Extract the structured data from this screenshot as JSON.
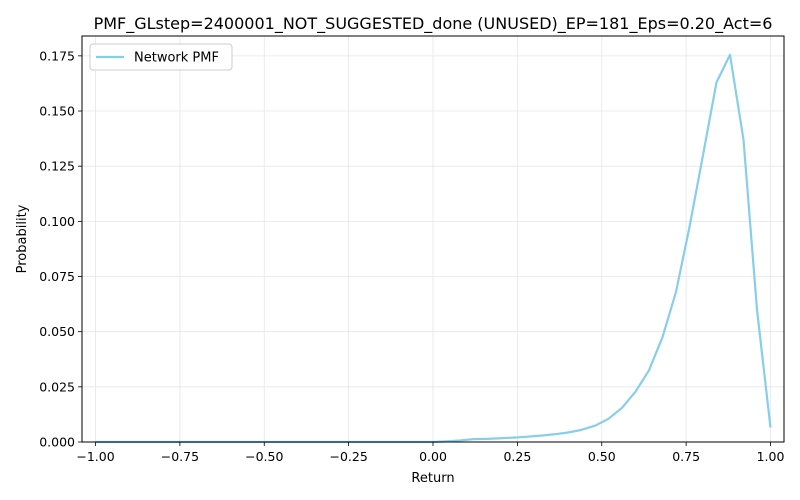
{
  "chart_data": {
    "type": "line",
    "title": "PMF_GLstep=2400001_NOT_SUGGESTED_done (UNUSED)_EP=181_Eps=0.20_Act=6",
    "xlabel": "Return",
    "ylabel": "Probability",
    "xlim": [
      -1.04,
      1.04
    ],
    "ylim": [
      0.0,
      0.184
    ],
    "xticks": [
      -1.0,
      -0.75,
      -0.5,
      -0.25,
      0.0,
      0.25,
      0.5,
      0.75,
      1.0
    ],
    "xtick_labels": [
      "−1.00",
      "−0.75",
      "−0.50",
      "−0.25",
      "0.00",
      "0.25",
      "0.50",
      "0.75",
      "1.00"
    ],
    "yticks": [
      0.0,
      0.025,
      0.05,
      0.075,
      0.1,
      0.125,
      0.15,
      0.175
    ],
    "ytick_labels": [
      "0.000",
      "0.025",
      "0.050",
      "0.075",
      "0.100",
      "0.125",
      "0.150",
      "0.175"
    ],
    "grid": true,
    "legend_position": "top-left",
    "series": [
      {
        "name": "Network PMF",
        "color": "#87ceeb",
        "x": [
          -1.0,
          -0.96,
          -0.92,
          -0.88,
          -0.84,
          -0.8,
          -0.76,
          -0.72,
          -0.68,
          -0.64,
          -0.6,
          -0.56,
          -0.52,
          -0.48,
          -0.44,
          -0.4,
          -0.36,
          -0.32,
          -0.28,
          -0.24,
          -0.2,
          -0.16,
          -0.12,
          -0.08,
          -0.04,
          0.0,
          0.04,
          0.08,
          0.12,
          0.16,
          0.2,
          0.24,
          0.28,
          0.32,
          0.36,
          0.4,
          0.44,
          0.48,
          0.52,
          0.56,
          0.6,
          0.64,
          0.68,
          0.72,
          0.76,
          0.8,
          0.84,
          0.88,
          0.92,
          0.96,
          1.0
        ],
        "values": [
          0.0,
          0.0,
          0.0,
          0.0,
          0.0,
          0.0,
          0.0,
          0.0,
          0.0,
          0.0,
          0.0,
          0.0,
          0.0,
          0.0,
          0.0,
          0.0,
          0.0,
          0.0,
          0.0,
          0.0,
          0.0,
          0.0,
          0.0,
          0.0,
          0.0,
          0.0,
          0.0003,
          0.0007,
          0.0013,
          0.0014,
          0.0017,
          0.002,
          0.0024,
          0.0029,
          0.0035,
          0.0043,
          0.0055,
          0.0074,
          0.0105,
          0.0155,
          0.0228,
          0.0325,
          0.0475,
          0.068,
          0.0975,
          0.13,
          0.163,
          0.1755,
          0.137,
          0.06,
          0.0065
        ]
      }
    ]
  }
}
